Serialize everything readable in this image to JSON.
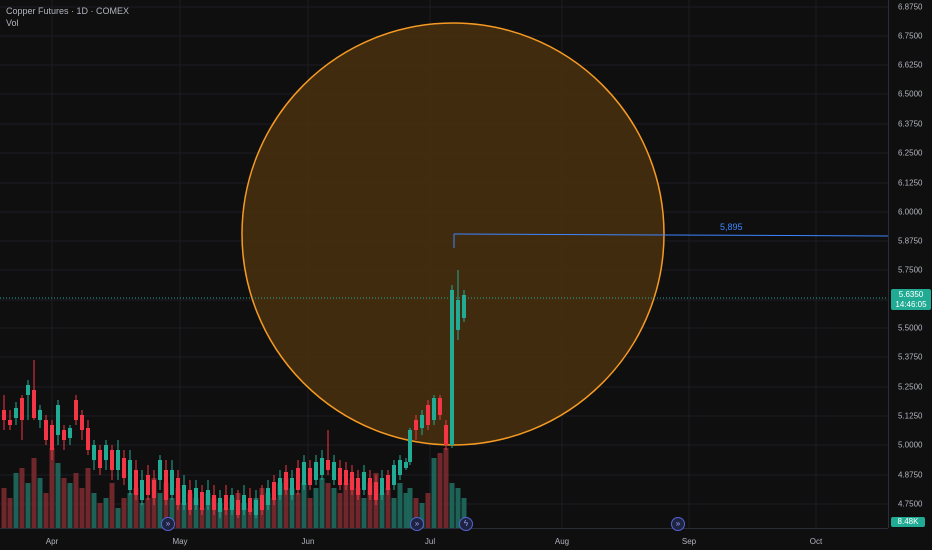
{
  "legend": {
    "title": "Copper Futures · 1D · COMEX",
    "volume_label": "Vol"
  },
  "price_axis": {
    "ticks": [
      "6.8750",
      "6.7500",
      "6.6250",
      "6.5000",
      "6.3750",
      "6.2500",
      "6.1250",
      "6.0000",
      "5.8750",
      "5.7500",
      "5.6250",
      "5.5000",
      "5.3750",
      "5.2500",
      "5.1250",
      "5.0000",
      "4.8750",
      "4.7500"
    ],
    "current_price": "5.6350",
    "countdown": "14:46:05",
    "volume_badge": "8.48K"
  },
  "time_axis": {
    "ticks": [
      "Apr",
      "May",
      "Jun",
      "Jul",
      "Aug",
      "Sep",
      "Oct"
    ]
  },
  "drawing": {
    "horizontal_line_label": "5,895",
    "circle_fill": "#4a300f",
    "circle_stroke": "#f59a23",
    "line_color": "#3d86ff"
  },
  "colors": {
    "up": "#22ab94",
    "down": "#f23645",
    "up_volume": "#1e6b5e",
    "down_volume": "#7a2a2f"
  },
  "icons": [
    "events-icon",
    "events-icon",
    "events-icon",
    "dividend-lightning-icon"
  ]
}
